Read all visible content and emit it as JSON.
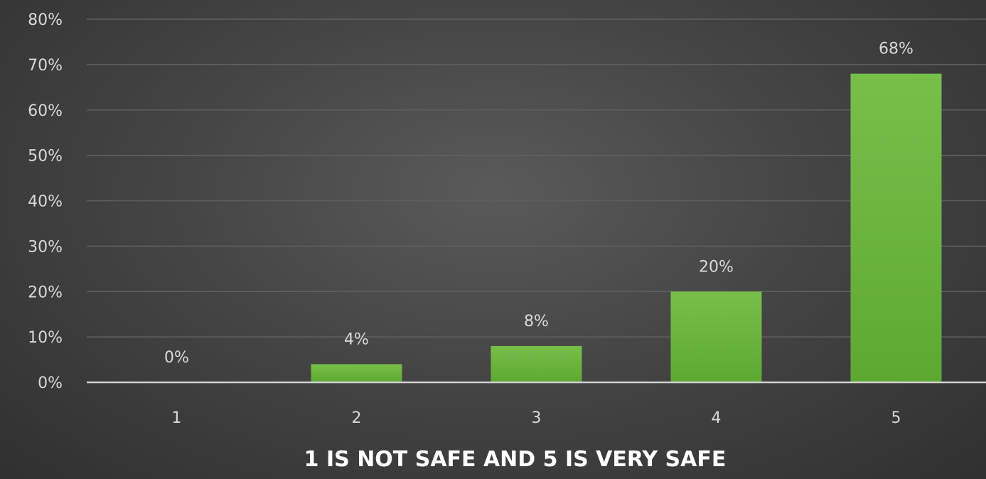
{
  "chart_data": {
    "type": "bar",
    "categories": [
      "1",
      "2",
      "3",
      "4",
      "5"
    ],
    "values": [
      0,
      4,
      8,
      20,
      68
    ],
    "data_labels": [
      "0%",
      "4%",
      "8%",
      "20%",
      "68%"
    ],
    "xlabel": "1 IS NOT SAFE AND 5 IS VERY SAFE",
    "ylabel": "",
    "ylim": [
      0,
      80
    ],
    "yticks": [
      "0%",
      "10%",
      "20%",
      "30%",
      "40%",
      "50%",
      "60%",
      "70%",
      "80%"
    ],
    "grid": true,
    "bar_color": "#6db33f"
  }
}
